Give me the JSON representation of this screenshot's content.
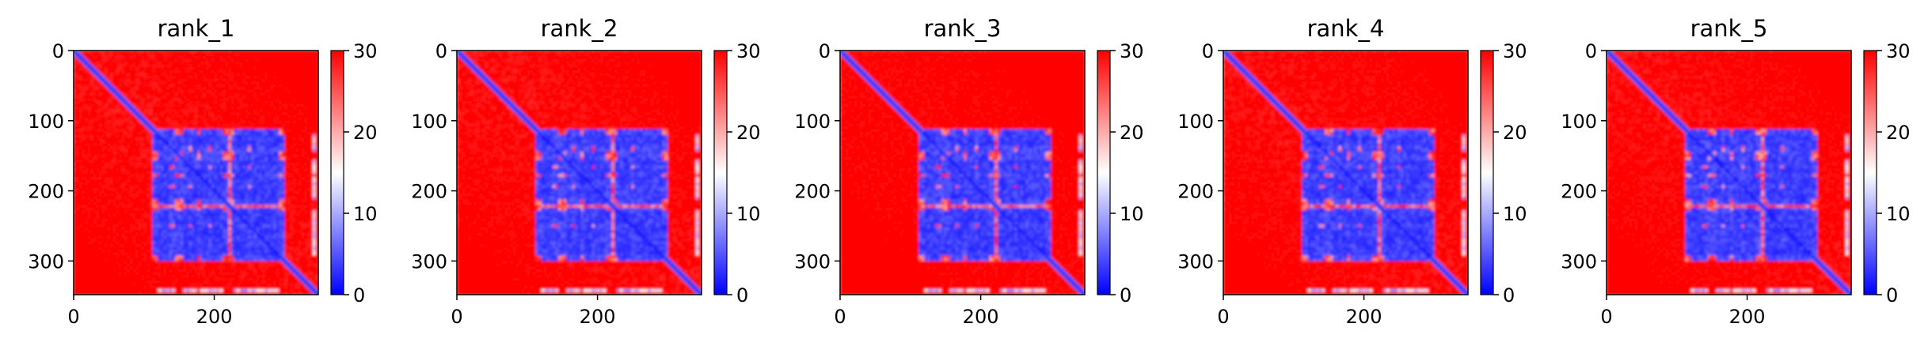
{
  "chart_data": [
    {
      "type": "heatmap",
      "title": "rank_1",
      "x_ticks": [
        0,
        200
      ],
      "y_ticks": [
        0,
        100,
        200,
        300
      ],
      "xlim": [
        0,
        348
      ],
      "ylim": [
        348,
        0
      ],
      "colorbar": {
        "ticks": [
          0,
          10,
          20,
          30
        ],
        "range": [
          0,
          30
        ],
        "colors": [
          "#0000ff",
          "#ffffff",
          "#ff0000"
        ]
      },
      "variant": 1
    },
    {
      "type": "heatmap",
      "title": "rank_2",
      "x_ticks": [
        0,
        200
      ],
      "y_ticks": [
        0,
        100,
        200,
        300
      ],
      "xlim": [
        0,
        348
      ],
      "ylim": [
        348,
        0
      ],
      "colorbar": {
        "ticks": [
          0,
          10,
          20,
          30
        ],
        "range": [
          0,
          30
        ],
        "colors": [
          "#0000ff",
          "#ffffff",
          "#ff0000"
        ]
      },
      "variant": 2
    },
    {
      "type": "heatmap",
      "title": "rank_3",
      "x_ticks": [
        0,
        200
      ],
      "y_ticks": [
        0,
        100,
        200,
        300
      ],
      "xlim": [
        0,
        348
      ],
      "ylim": [
        348,
        0
      ],
      "colorbar": {
        "ticks": [
          0,
          10,
          20,
          30
        ],
        "range": [
          0,
          30
        ],
        "colors": [
          "#0000ff",
          "#ffffff",
          "#ff0000"
        ]
      },
      "variant": 3
    },
    {
      "type": "heatmap",
      "title": "rank_4",
      "x_ticks": [
        0,
        200
      ],
      "y_ticks": [
        0,
        100,
        200,
        300
      ],
      "xlim": [
        0,
        348
      ],
      "ylim": [
        348,
        0
      ],
      "colorbar": {
        "ticks": [
          0,
          10,
          20,
          30
        ],
        "range": [
          0,
          30
        ],
        "colors": [
          "#0000ff",
          "#ffffff",
          "#ff0000"
        ]
      },
      "variant": 4
    },
    {
      "type": "heatmap",
      "title": "rank_5",
      "x_ticks": [
        0,
        200
      ],
      "y_ticks": [
        0,
        100,
        200,
        300
      ],
      "xlim": [
        0,
        348
      ],
      "ylim": [
        348,
        0
      ],
      "colorbar": {
        "ticks": [
          0,
          10,
          20,
          30
        ],
        "range": [
          0,
          30
        ],
        "colors": [
          "#0000ff",
          "#ffffff",
          "#ff0000"
        ]
      },
      "variant": 5
    }
  ]
}
